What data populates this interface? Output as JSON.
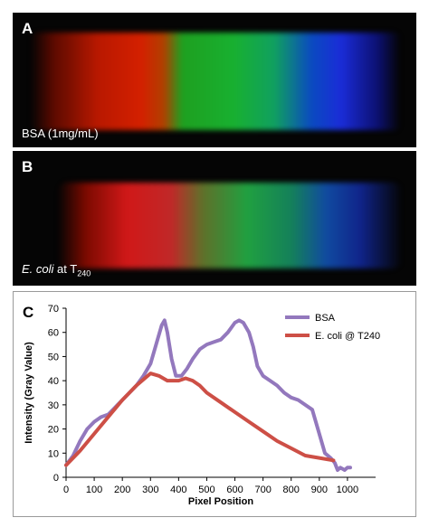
{
  "panels": {
    "a": {
      "letter": "A",
      "caption": "BSA (1mg/mL)"
    },
    "b": {
      "letter": "B",
      "caption_italic": "E. coli",
      "caption_mid": " at T",
      "caption_sub": "240"
    },
    "c": {
      "letter": "C"
    }
  },
  "colors": {
    "bsa": "#9378bd",
    "ecoli": "#cd4f46",
    "background_spectra": "#050505"
  },
  "chart_data": {
    "type": "line",
    "xlabel": "Pixel Position",
    "ylabel": "Intensity (Gray Value)",
    "xlim": [
      0,
      1100
    ],
    "ylim": [
      0,
      70
    ],
    "xticks": [
      0,
      100,
      200,
      300,
      400,
      500,
      600,
      700,
      800,
      900,
      1000
    ],
    "yticks": [
      0,
      10,
      20,
      30,
      40,
      50,
      60,
      70
    ],
    "grid": false,
    "legend": "top-right",
    "series": [
      {
        "name": "BSA",
        "x": [
          0,
          25,
          50,
          75,
          100,
          125,
          150,
          175,
          200,
          225,
          250,
          275,
          300,
          320,
          340,
          350,
          360,
          375,
          390,
          410,
          430,
          450,
          475,
          500,
          525,
          550,
          575,
          600,
          615,
          630,
          650,
          665,
          680,
          700,
          725,
          750,
          775,
          800,
          825,
          850,
          875,
          900,
          920,
          940,
          955,
          965,
          975,
          990,
          1000,
          1010
        ],
        "y": [
          5,
          9,
          15,
          20,
          23,
          25,
          26,
          29,
          32,
          35,
          38,
          42,
          47,
          55,
          63,
          65,
          60,
          49,
          42,
          42,
          45,
          49,
          53,
          55,
          56,
          57,
          60,
          64,
          65,
          64,
          60,
          54,
          46,
          42,
          40,
          38,
          35,
          33,
          32,
          30,
          28,
          18,
          10,
          8,
          6,
          3,
          4,
          3,
          4,
          4
        ]
      },
      {
        "name": "E. coli @ T240",
        "x": [
          0,
          25,
          50,
          100,
          150,
          200,
          250,
          300,
          330,
          360,
          400,
          425,
          450,
          475,
          500,
          550,
          600,
          650,
          700,
          750,
          800,
          850,
          900,
          950
        ],
        "y": [
          5,
          8,
          11,
          18,
          25,
          32,
          38,
          43,
          42,
          40,
          40,
          41,
          40,
          38,
          35,
          31,
          27,
          23,
          19,
          15,
          12,
          9,
          8,
          7
        ]
      }
    ]
  }
}
